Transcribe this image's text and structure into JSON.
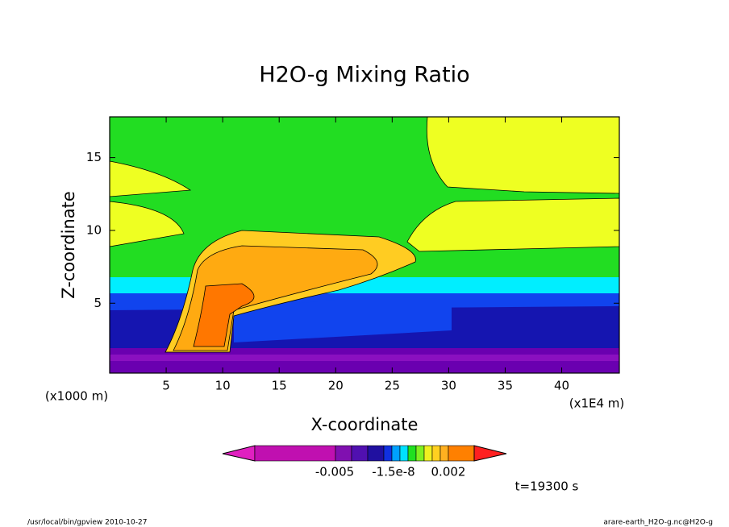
{
  "chart_data": {
    "type": "contour",
    "title": "H2O-g Mixing Ratio",
    "x_label": "X-coordinate",
    "y_label": "Z-coordinate",
    "y_unit": "(x1000 m)",
    "x_unit": "(x1E4 m)",
    "xlim": [
      0,
      45.1
    ],
    "ylim": [
      0.2,
      17.8
    ],
    "xticks": [
      5,
      10,
      15,
      20,
      25,
      30,
      35,
      40
    ],
    "yticks": [
      5,
      10,
      15
    ],
    "colorbar_labels": [
      "-0.005",
      "-1.5e-8",
      "0.002"
    ],
    "colorbar_colors": [
      "#e020c0",
      "#c010b0",
      "#8010b0",
      "#5010b0",
      "#2010a0",
      "#1030e0",
      "#00a0ff",
      "#00e0ff",
      "#20e020",
      "#80f020",
      "#f0f020",
      "#ffd020",
      "#ffb020",
      "#ff8000",
      "#ff2020"
    ],
    "time_label": "t=19300 s",
    "footer_left": "/usr/local/bin/gpview  2010-10-27",
    "footer_right": "arare-earth_H2O-g.nc@H2O-g"
  }
}
